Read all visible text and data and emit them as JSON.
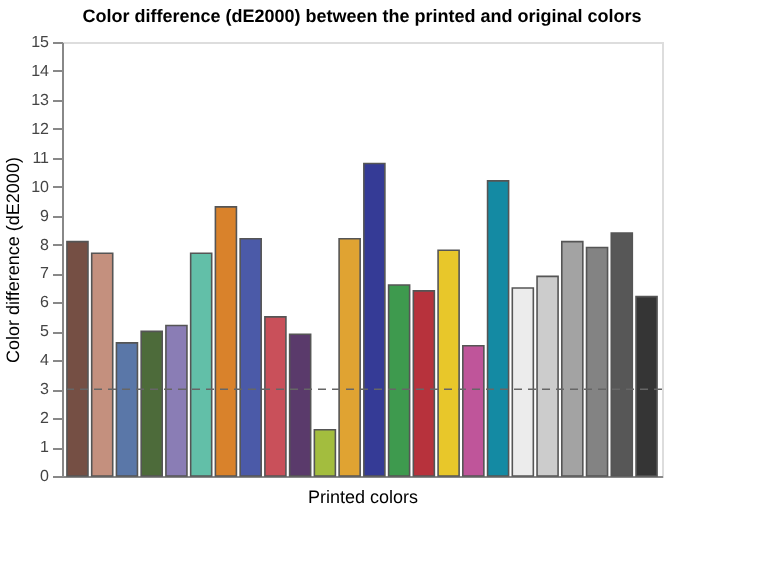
{
  "chart_data": {
    "type": "bar",
    "title": "Color difference (dE2000) between the printed and original colors",
    "xlabel": "Printed colors",
    "ylabel": "Color difference (dE2000)",
    "categories": [
      null,
      null,
      null,
      null,
      null,
      null,
      null,
      null,
      null,
      null,
      null,
      null,
      null,
      null,
      null,
      null,
      null,
      null,
      null,
      null,
      null,
      null,
      null,
      null
    ],
    "values": [
      8.1,
      7.7,
      4.6,
      5.0,
      5.2,
      7.7,
      9.3,
      8.2,
      5.5,
      4.9,
      1.6,
      8.2,
      10.8,
      6.6,
      6.4,
      7.8,
      4.5,
      10.2,
      6.5,
      6.9,
      8.1,
      7.9,
      8.4,
      6.2
    ],
    "colors": [
      "#754f44",
      "#c4907e",
      "#5a77a8",
      "#4d6b3a",
      "#8a7db5",
      "#62bfa8",
      "#d9822b",
      "#4b5aa8",
      "#c9505a",
      "#5a3a6b",
      "#a3bd3e",
      "#e0a332",
      "#353b96",
      "#3e9a4e",
      "#b7323c",
      "#e8c72a",
      "#bf559a",
      "#148aa3",
      "#ececec",
      "#cccccc",
      "#a3a3a3",
      "#838383",
      "#575757",
      "#353535"
    ],
    "ylim": [
      0,
      15
    ],
    "yticks": [
      0,
      1,
      2,
      3,
      4,
      5,
      6,
      7,
      8,
      9,
      10,
      11,
      12,
      13,
      14,
      15
    ],
    "grid": false,
    "ref_lines": [
      {
        "axis": "y",
        "value": 3,
        "color": "#666666",
        "line_style": "dashed"
      }
    ]
  }
}
